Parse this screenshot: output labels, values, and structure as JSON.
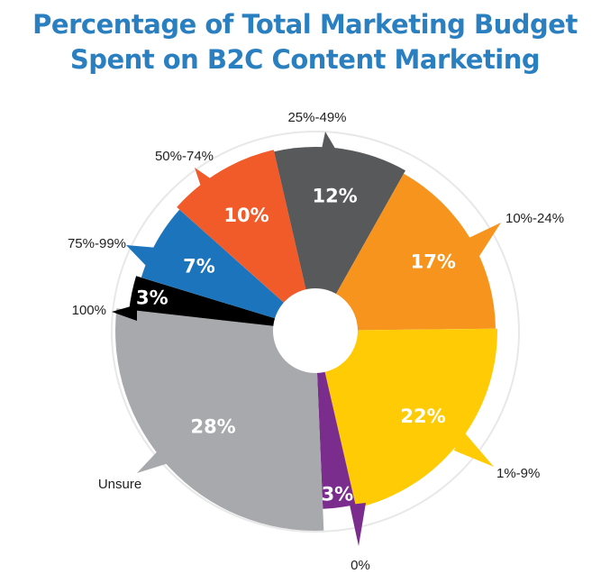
{
  "chart_data": {
    "type": "pie",
    "title": [
      "Percentage of Total Marketing Budget",
      "Spent on B2C Content Marketing"
    ],
    "slices": [
      {
        "label": "25%-49%",
        "value": 12,
        "value_label": "12%",
        "color": "#58595b"
      },
      {
        "label": "10%-24%",
        "value": 17,
        "value_label": "17%",
        "color": "#f7941d"
      },
      {
        "label": "1%-9%",
        "value": 22,
        "value_label": "22%",
        "color": "#ffcb05"
      },
      {
        "label": "0%",
        "value": 3,
        "value_label": "3%",
        "color": "#7b2d8e"
      },
      {
        "label": "Unsure",
        "value": 28,
        "value_label": "28%",
        "color": "#a7a9ac"
      },
      {
        "label": "100%",
        "value": 3,
        "value_label": "3%",
        "color": "#000000"
      },
      {
        "label": "75%-99%",
        "value": 7,
        "value_label": "7%",
        "color": "#1c75bc"
      },
      {
        "label": "50%-74%",
        "value": 10,
        "value_label": "10%",
        "color": "#f15a29"
      }
    ]
  }
}
